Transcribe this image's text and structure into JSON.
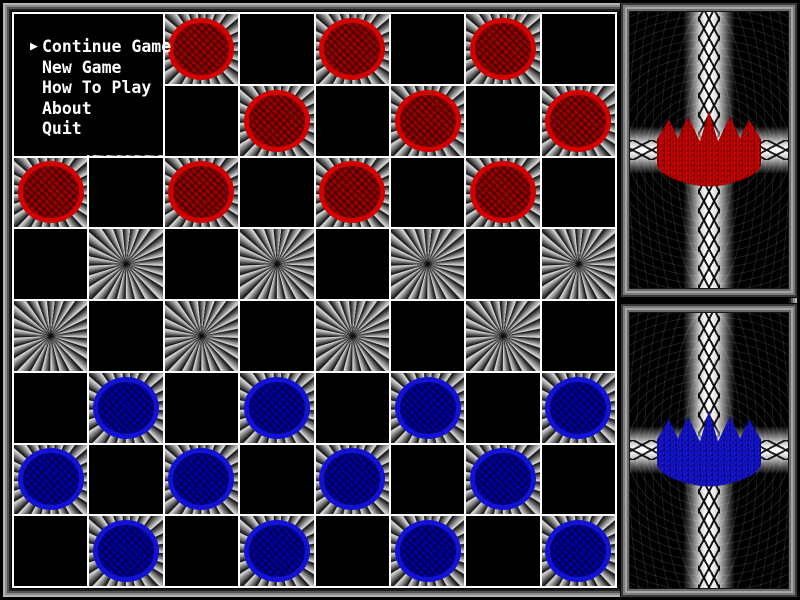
{
  "menu": {
    "cursor": "▶",
    "items": [
      {
        "label": "Continue Game",
        "selected": true
      },
      {
        "label": "New Game",
        "selected": false
      },
      {
        "label": "How To Play",
        "selected": false
      },
      {
        "label": "About",
        "selected": false
      },
      {
        "label": "Quit",
        "selected": false
      }
    ]
  },
  "board": {
    "rows": 8,
    "cols": 8,
    "grid_line_color": "#ffffff",
    "dark_square_color": "#000000",
    "pattern_square_style": "gray-starburst",
    "piece_colors": {
      "red_ring": "#d40000",
      "red_body": "#9c0000",
      "blue_ring": "#1212d6",
      "blue_body": "#0000a8"
    },
    "pieces": [
      {
        "row": 0,
        "col": 2,
        "color": "red"
      },
      {
        "row": 0,
        "col": 4,
        "color": "red"
      },
      {
        "row": 0,
        "col": 6,
        "color": "red"
      },
      {
        "row": 1,
        "col": 3,
        "color": "red"
      },
      {
        "row": 1,
        "col": 5,
        "color": "red"
      },
      {
        "row": 1,
        "col": 7,
        "color": "red"
      },
      {
        "row": 2,
        "col": 0,
        "color": "red"
      },
      {
        "row": 2,
        "col": 2,
        "color": "red"
      },
      {
        "row": 2,
        "col": 4,
        "color": "red"
      },
      {
        "row": 2,
        "col": 6,
        "color": "red"
      },
      {
        "row": 5,
        "col": 1,
        "color": "blue"
      },
      {
        "row": 5,
        "col": 3,
        "color": "blue"
      },
      {
        "row": 5,
        "col": 5,
        "color": "blue"
      },
      {
        "row": 5,
        "col": 7,
        "color": "blue"
      },
      {
        "row": 6,
        "col": 0,
        "color": "blue"
      },
      {
        "row": 6,
        "col": 2,
        "color": "blue"
      },
      {
        "row": 6,
        "col": 4,
        "color": "blue"
      },
      {
        "row": 6,
        "col": 6,
        "color": "blue"
      },
      {
        "row": 7,
        "col": 1,
        "color": "blue"
      },
      {
        "row": 7,
        "col": 3,
        "color": "blue"
      },
      {
        "row": 7,
        "col": 5,
        "color": "blue"
      },
      {
        "row": 7,
        "col": 7,
        "color": "blue"
      }
    ]
  },
  "side_panels": [
    {
      "player": "red",
      "icon": "crown",
      "crown_color": "#c80000"
    },
    {
      "player": "blue",
      "icon": "crown",
      "crown_color": "#1414d2"
    }
  ]
}
